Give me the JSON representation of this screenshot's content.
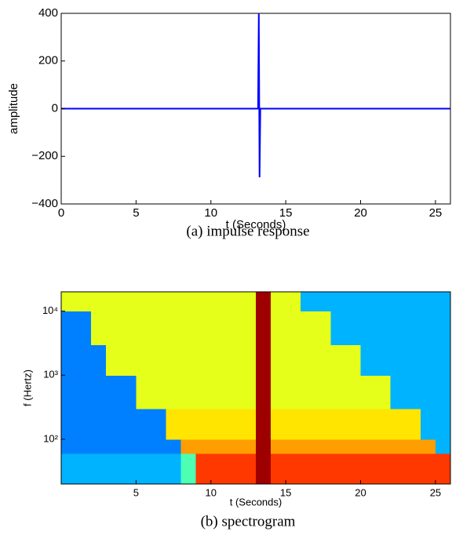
{
  "chart_data": [
    {
      "type": "line",
      "title": "(a) impulse response",
      "xlabel": "t (Seconds)",
      "ylabel": "amplitude",
      "x": [
        0,
        13.15,
        13.2,
        13.25,
        13.3,
        26
      ],
      "values": [
        0,
        0,
        398,
        -288,
        0,
        0
      ],
      "color": "#0000ff",
      "xlim": [
        0,
        26
      ],
      "xticks": [
        0,
        5,
        10,
        15,
        20,
        25
      ],
      "ylim": [
        -400,
        400
      ],
      "yticks": [
        {
          "value": -400,
          "label": "−400"
        },
        {
          "value": -200,
          "label": "−200"
        },
        0,
        200,
        400
      ]
    },
    {
      "type": "heatmap",
      "title": "(b) spectrogram",
      "xlabel": "t (Seconds)",
      "ylabel": "f (Hertz)",
      "colormap": "jet",
      "ylog": true,
      "x_bins": [
        0,
        1,
        2,
        3,
        4,
        5,
        6,
        7,
        8,
        9,
        10,
        11,
        12,
        13,
        14,
        15,
        16,
        17,
        18,
        19,
        20,
        21,
        22,
        23,
        24,
        25,
        26
      ],
      "y_bins": [
        20,
        60,
        100,
        300,
        1000,
        3000,
        10000,
        20000
      ],
      "z": [
        [
          0.3,
          0.3,
          0.3,
          0.3,
          0.3,
          0.3,
          0.3,
          0.3,
          0.45,
          0.82,
          0.82,
          0.82,
          0.82,
          0.97,
          0.82,
          0.82,
          0.82,
          0.82,
          0.82,
          0.82,
          0.82,
          0.82,
          0.82,
          0.82,
          0.82,
          0.82
        ],
        [
          0.25,
          0.25,
          0.25,
          0.25,
          0.25,
          0.25,
          0.25,
          0.25,
          0.72,
          0.72,
          0.72,
          0.72,
          0.72,
          0.97,
          0.72,
          0.72,
          0.72,
          0.72,
          0.72,
          0.72,
          0.72,
          0.72,
          0.72,
          0.72,
          0.72,
          0.3
        ],
        [
          0.25,
          0.25,
          0.25,
          0.25,
          0.25,
          0.25,
          0.25,
          0.65,
          0.65,
          0.65,
          0.65,
          0.65,
          0.65,
          0.97,
          0.65,
          0.65,
          0.65,
          0.65,
          0.65,
          0.65,
          0.65,
          0.65,
          0.65,
          0.65,
          0.3,
          0.3
        ],
        [
          0.25,
          0.25,
          0.25,
          0.25,
          0.25,
          0.6,
          0.6,
          0.6,
          0.6,
          0.6,
          0.6,
          0.6,
          0.6,
          0.97,
          0.6,
          0.6,
          0.6,
          0.6,
          0.6,
          0.6,
          0.6,
          0.6,
          0.3,
          0.3,
          0.3,
          0.3
        ],
        [
          0.25,
          0.25,
          0.25,
          0.6,
          0.6,
          0.6,
          0.6,
          0.6,
          0.6,
          0.6,
          0.6,
          0.6,
          0.6,
          0.97,
          0.6,
          0.6,
          0.6,
          0.6,
          0.6,
          0.6,
          0.3,
          0.3,
          0.3,
          0.3,
          0.3,
          0.3
        ],
        [
          0.25,
          0.25,
          0.6,
          0.6,
          0.6,
          0.6,
          0.6,
          0.6,
          0.6,
          0.6,
          0.6,
          0.6,
          0.6,
          0.97,
          0.6,
          0.6,
          0.6,
          0.6,
          0.3,
          0.3,
          0.3,
          0.3,
          0.3,
          0.3,
          0.3,
          0.3
        ],
        [
          0.6,
          0.6,
          0.6,
          0.6,
          0.6,
          0.6,
          0.6,
          0.6,
          0.6,
          0.6,
          0.6,
          0.6,
          0.6,
          0.97,
          0.6,
          0.6,
          0.3,
          0.3,
          0.3,
          0.3,
          0.3,
          0.3,
          0.3,
          0.3,
          0.3,
          0.3
        ]
      ],
      "xlim": [
        0,
        26
      ],
      "xticks": [
        5,
        10,
        15,
        20,
        25
      ],
      "ylim": [
        20,
        20000
      ],
      "yticks": [
        {
          "value": 100,
          "label": "10²"
        },
        {
          "value": 1000,
          "label": "10³"
        },
        {
          "value": 10000,
          "label": "10⁴"
        }
      ]
    }
  ]
}
